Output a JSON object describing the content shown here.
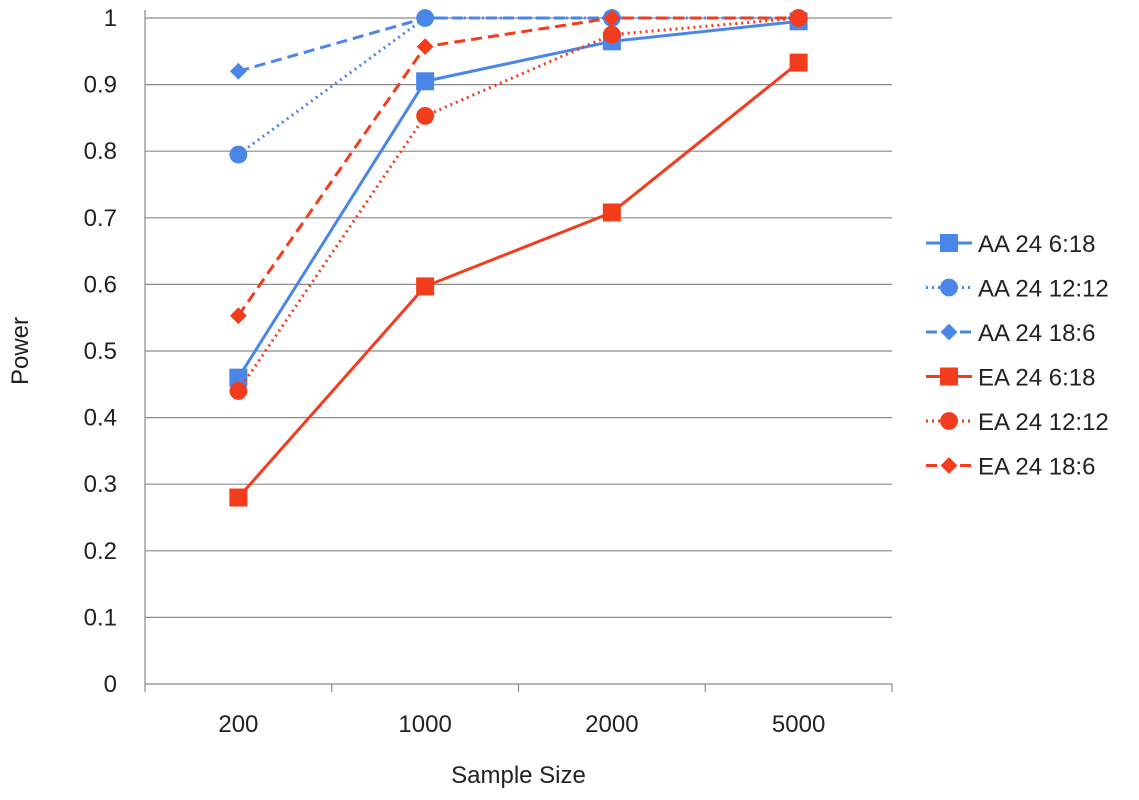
{
  "chart_data": {
    "type": "line",
    "categories": [
      "200",
      "1000",
      "2000",
      "5000"
    ],
    "xlabel": "Sample Size",
    "ylabel": "Power",
    "ylim": [
      0,
      1
    ],
    "yticks": [
      "0",
      "0.1",
      "0.2",
      "0.3",
      "0.4",
      "0.5",
      "0.6",
      "0.7",
      "0.8",
      "0.9",
      "1"
    ],
    "grid": "horizontal",
    "legend_position": "right",
    "series": [
      {
        "name": "AA 24 6:18",
        "values": [
          0.46,
          0.905,
          0.965,
          0.995
        ],
        "color": "#4a86e8",
        "dash": "solid",
        "marker": "square"
      },
      {
        "name": "AA 24 12:12",
        "values": [
          0.795,
          1.0,
          1.0,
          1.0
        ],
        "color": "#4a86e8",
        "dash": "dotted",
        "marker": "circle"
      },
      {
        "name": "AA 24 18:6",
        "values": [
          0.92,
          1.0,
          1.0,
          1.0
        ],
        "color": "#4a86e8",
        "dash": "dashed",
        "marker": "diamond"
      },
      {
        "name": "EA 24 6:18",
        "values": [
          0.28,
          0.597,
          0.708,
          0.933
        ],
        "color": "#f23c1c",
        "dash": "solid",
        "marker": "square"
      },
      {
        "name": "EA 24 12:12",
        "values": [
          0.44,
          0.853,
          0.975,
          1.0
        ],
        "color": "#f23c1c",
        "dash": "dotted",
        "marker": "circle"
      },
      {
        "name": "EA 24 18:6",
        "values": [
          0.553,
          0.957,
          1.0,
          1.0
        ],
        "color": "#f23c1c",
        "dash": "dashed",
        "marker": "diamond"
      }
    ]
  }
}
